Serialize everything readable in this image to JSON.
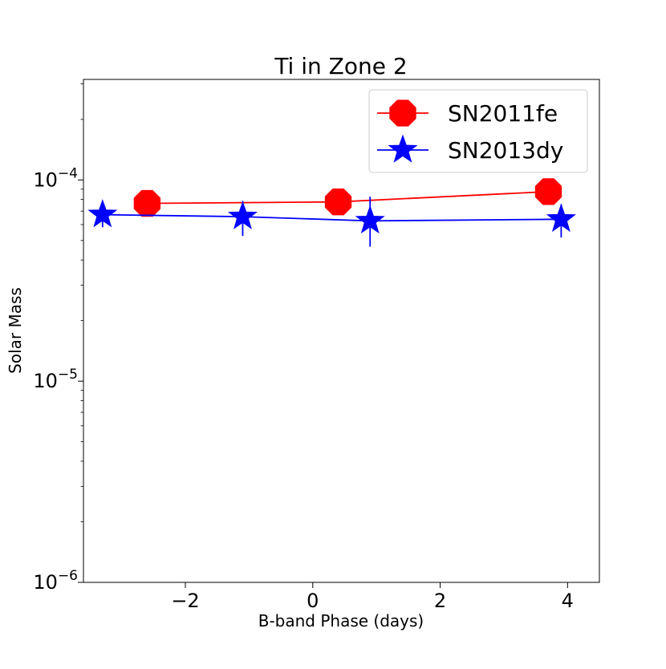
{
  "chart_data": {
    "type": "line",
    "title": "Ti in Zone 2",
    "xlabel": "B-band Phase (days)",
    "ylabel": "Solar Mass",
    "xlim": [
      -3.6,
      4.5
    ],
    "ylim": [
      1e-06,
      0.000316
    ],
    "yscale": "log",
    "grid": false,
    "legend_position": "upper-right",
    "x_ticks": [
      {
        "value": -2,
        "label": "−2"
      },
      {
        "value": 0,
        "label": "0"
      },
      {
        "value": 2,
        "label": "2"
      },
      {
        "value": 4,
        "label": "4"
      }
    ],
    "y_ticks": [
      {
        "value": 0.0001,
        "base": "10",
        "exp": "−4"
      },
      {
        "value": 1e-05,
        "base": "10",
        "exp": "−5"
      },
      {
        "value": 1e-06,
        "base": "10",
        "exp": "−6"
      }
    ],
    "series": [
      {
        "name": "SN2011fe",
        "color": "#ff0000",
        "marker": "octagon",
        "x": [
          -2.6,
          0.4,
          3.7
        ],
        "y": [
          7.65e-05,
          7.78e-05,
          8.75e-05
        ],
        "yerr_low": [
          4.5e-06,
          4.5e-06,
          5e-06
        ],
        "yerr_high": [
          4.5e-06,
          4.5e-06,
          5e-06
        ]
      },
      {
        "name": "SN2013dy",
        "color": "#0000ff",
        "marker": "star",
        "x": [
          -3.3,
          -1.1,
          0.9,
          3.9
        ],
        "y": [
          6.72e-05,
          6.57e-05,
          6.26e-05,
          6.38e-05
        ],
        "yerr_low": [
          9e-06,
          1.3e-05,
          1.6e-05,
          1.2e-05
        ],
        "yerr_high": [
          9e-06,
          1.3e-05,
          2e-05,
          1.2e-05
        ]
      }
    ]
  }
}
